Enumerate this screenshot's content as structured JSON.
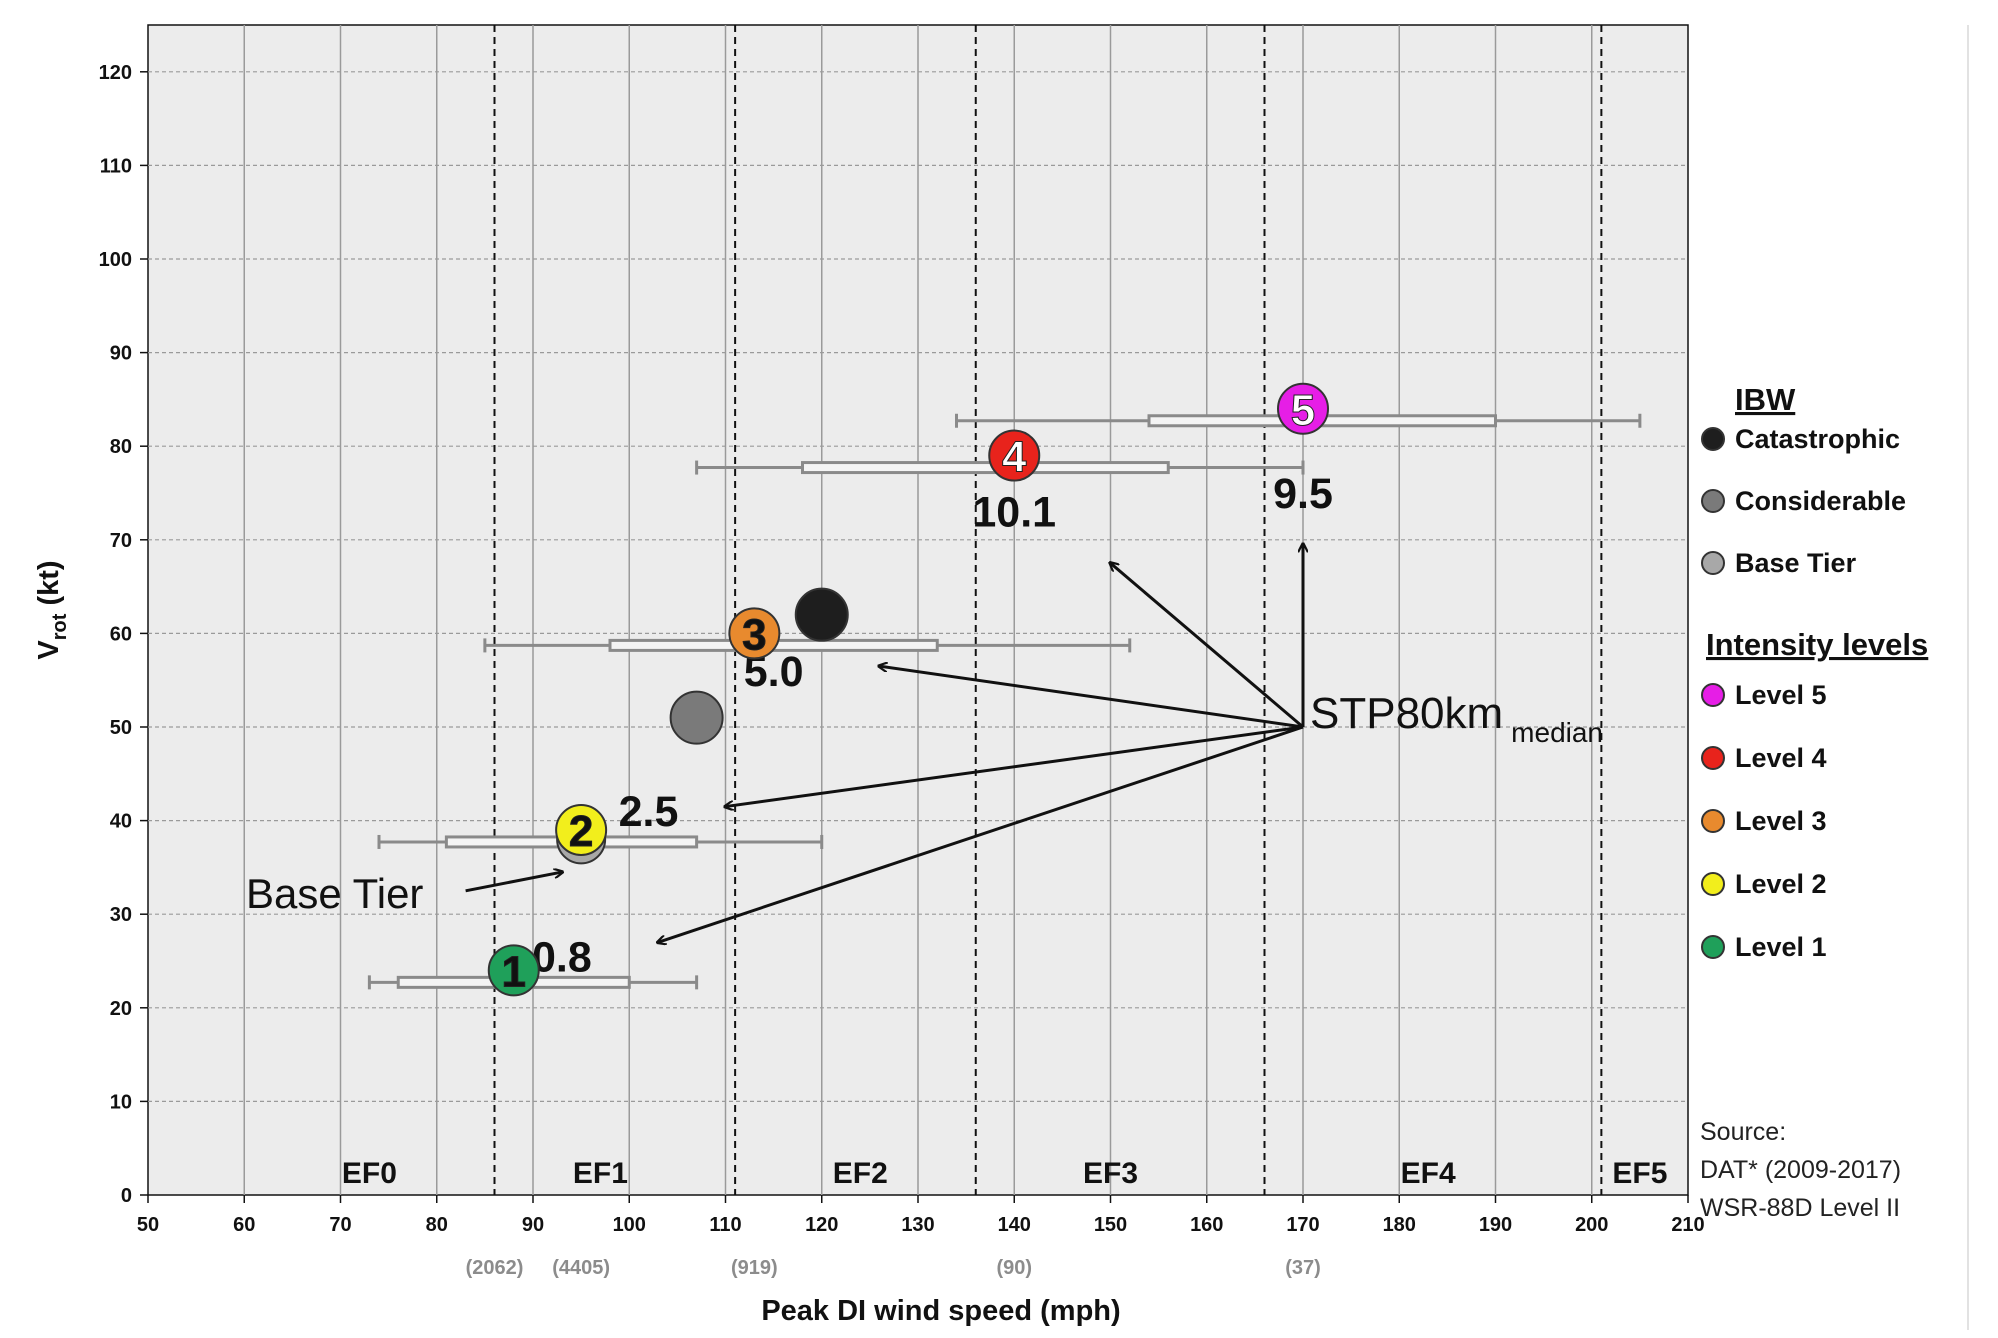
{
  "chart_data": {
    "type": "scatter",
    "xlabel": "Peak DI wind speed (mph)",
    "ylabel": {
      "main": "V",
      "sub": "rot",
      "unit": " (kt)"
    },
    "xlim": [
      50,
      210
    ],
    "ylim": [
      0,
      125
    ],
    "x_ticks": [
      50,
      60,
      70,
      80,
      90,
      100,
      110,
      120,
      130,
      140,
      150,
      160,
      170,
      180,
      190,
      200,
      210
    ],
    "y_ticks": [
      0,
      10,
      20,
      30,
      40,
      50,
      60,
      70,
      80,
      90,
      100,
      110,
      120
    ],
    "grid": true,
    "ef_thresholds": [
      86,
      111,
      136,
      166,
      201
    ],
    "ef_labels": [
      {
        "label": "EF0",
        "x": 73
      },
      {
        "label": "EF1",
        "x": 97
      },
      {
        "label": "EF2",
        "x": 124
      },
      {
        "label": "EF3",
        "x": 150
      },
      {
        "label": "EF4",
        "x": 183
      },
      {
        "label": "EF5",
        "x": 205
      }
    ],
    "sample_sizes": [
      {
        "label": "(2062)",
        "x": 86
      },
      {
        "label": "(4405)",
        "x": 95
      },
      {
        "label": "(919)",
        "x": 113
      },
      {
        "label": "(90)",
        "x": 140
      },
      {
        "label": "(37)",
        "x": 170
      }
    ],
    "intensity_levels": [
      {
        "level": "1",
        "x": 88,
        "y": 24,
        "color": "#1fa05a",
        "text_color": "#111111",
        "whisker": [
          73,
          107
        ],
        "box": [
          76,
          100
        ]
      },
      {
        "level": "2",
        "x": 95,
        "y": 39,
        "color": "#f2ee1c",
        "text_color": "#111111",
        "whisker": [
          74,
          120
        ],
        "box": [
          81,
          107
        ]
      },
      {
        "level": "3",
        "x": 113,
        "y": 60,
        "color": "#e88a2e",
        "text_color": "#111111",
        "whisker": [
          85,
          152
        ],
        "box": [
          98,
          132
        ]
      },
      {
        "level": "4",
        "x": 140,
        "y": 79,
        "color": "#e8231c",
        "text_color": "#ffffff",
        "whisker": [
          107,
          170
        ],
        "box": [
          118,
          156
        ]
      },
      {
        "level": "5",
        "x": 170,
        "y": 84,
        "color": "#e61ee6",
        "text_color": "#ffffff",
        "whisker": [
          134,
          205
        ],
        "box": [
          154,
          190
        ]
      }
    ],
    "ibw_points": [
      {
        "name": "Catastrophic",
        "x": 120,
        "y": 62,
        "color": "#1e1e1e"
      },
      {
        "name": "Considerable",
        "x": 107,
        "y": 51,
        "color": "#7a7a7a"
      },
      {
        "name": "Base Tier",
        "x": 95,
        "y": 38,
        "color": "#a8a8a8"
      }
    ],
    "stp_annotation": {
      "label": "STP80km",
      "sub": "median",
      "origin": [
        170,
        50
      ],
      "arrows": [
        {
          "value": "0.8",
          "tip": [
            103,
            27
          ],
          "label_at": [
            93,
            25.5
          ]
        },
        {
          "value": "2.5",
          "tip": [
            110,
            41.5
          ],
          "label_at": [
            102,
            41
          ]
        },
        {
          "value": "5.0",
          "tip": [
            126,
            56.5
          ],
          "label_at": [
            115,
            56
          ]
        },
        {
          "value": "10.1",
          "tip": [
            150,
            67.5
          ],
          "label_at": [
            140,
            73
          ]
        },
        {
          "value": "9.5",
          "tip": [
            170,
            69.5
          ],
          "label_at": [
            170,
            75
          ]
        }
      ]
    },
    "base_tier_annotation": {
      "label": "Base Tier",
      "from": [
        83,
        32.5
      ],
      "tip": [
        93,
        34.5
      ]
    }
  },
  "legend": {
    "ibw_title": "IBW",
    "ibw_items": [
      {
        "label": "Catastrophic",
        "color": "#1e1e1e"
      },
      {
        "label": "Considerable",
        "color": "#7a7a7a"
      },
      {
        "label": "Base Tier",
        "color": "#a8a8a8"
      }
    ],
    "levels_title": "Intensity levels",
    "level_items": [
      {
        "label": "Level 5",
        "color": "#e61ee6"
      },
      {
        "label": "Level 4",
        "color": "#e8231c"
      },
      {
        "label": "Level 3",
        "color": "#e88a2e"
      },
      {
        "label": "Level 2",
        "color": "#f2ee1c"
      },
      {
        "label": "Level 1",
        "color": "#1fa05a"
      }
    ]
  },
  "source": {
    "lines": [
      "Source:",
      "DAT* (2009-2017)",
      "WSR-88D Level II"
    ]
  },
  "colors": {
    "plot_background": "#ececec",
    "grid": "#9a9a9a",
    "whisker": "#8a8a8a"
  }
}
